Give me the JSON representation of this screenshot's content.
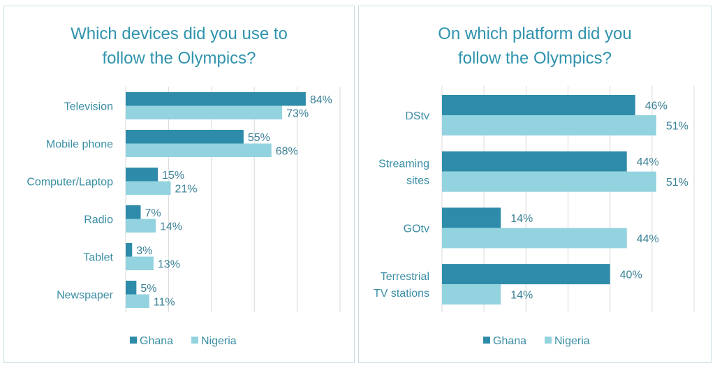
{
  "colors": {
    "ghana": "#2e8caa",
    "nigeria": "#93d3df",
    "text": "#3a8ea5",
    "grid": "#d9d9d9"
  },
  "chart_data": [
    {
      "type": "bar",
      "orientation": "horizontal",
      "title_lines": [
        "Which devices did you use to",
        "follow the Olympics?"
      ],
      "categories": [
        "Television",
        "Mobile phone",
        "Computer/Laptop",
        "Radio",
        "Tablet",
        "Newspaper"
      ],
      "series": [
        {
          "name": "Ghana",
          "values": [
            84,
            55,
            15,
            7,
            3,
            5
          ]
        },
        {
          "name": "Nigeria",
          "values": [
            73,
            68,
            21,
            14,
            13,
            11
          ]
        }
      ],
      "labels": {
        "Ghana": [
          "84%",
          "55%",
          "15%",
          "7%",
          "3%",
          "5%"
        ],
        "Nigeria": [
          "73%",
          "68%",
          "21%",
          "14%",
          "13%",
          "11%"
        ]
      },
      "xlim": [
        0,
        100
      ],
      "grid_step": 20,
      "grid": true,
      "legend": "bottom"
    },
    {
      "type": "bar",
      "orientation": "horizontal",
      "title_lines": [
        "On which platform did you",
        "follow the Olympics?"
      ],
      "categories": [
        [
          "DStv"
        ],
        [
          "Streaming",
          "sites"
        ],
        [
          "GOtv"
        ],
        [
          "Terrestrial",
          "TV stations"
        ]
      ],
      "series": [
        {
          "name": "Ghana",
          "values": [
            46,
            44,
            14,
            40
          ]
        },
        {
          "name": "Nigeria",
          "values": [
            51,
            51,
            44,
            14
          ]
        }
      ],
      "labels": {
        "Ghana": [
          "46%",
          "44%",
          "14%",
          "40%"
        ],
        "Nigeria": [
          "51%",
          "51%",
          "44%",
          "14%"
        ]
      },
      "xlim": [
        0,
        60
      ],
      "grid_step": 10,
      "grid": true,
      "legend": "bottom"
    }
  ]
}
